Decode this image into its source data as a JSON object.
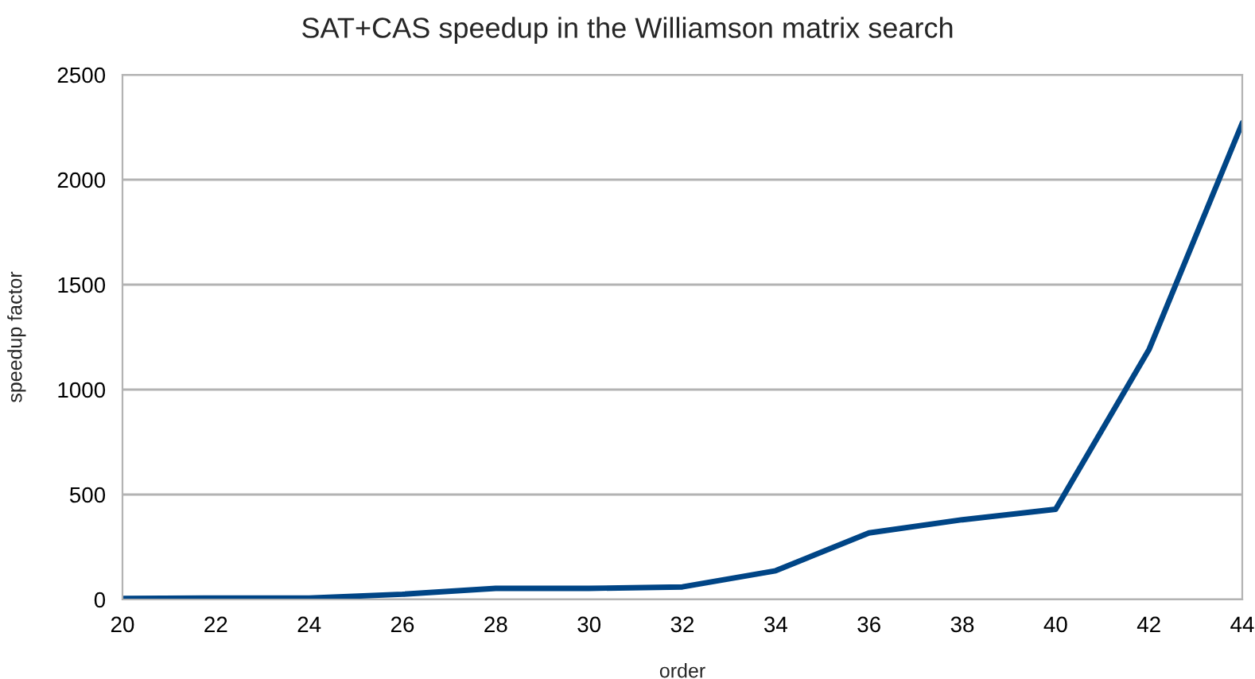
{
  "chart_data": {
    "type": "line",
    "title": "SAT+CAS speedup in the Williamson matrix search",
    "xlabel": "order",
    "ylabel": "speedup factor",
    "x": [
      20,
      22,
      24,
      26,
      28,
      30,
      32,
      34,
      36,
      38,
      40,
      42,
      44
    ],
    "series": [
      {
        "color": "#004586",
        "values": [
          5,
          7,
          7,
          25,
          53,
          53,
          60,
          137,
          317,
          380,
          430,
          1190,
          2270
        ]
      }
    ],
    "xlim": [
      20,
      44
    ],
    "xticks": [
      20,
      22,
      24,
      26,
      28,
      30,
      32,
      34,
      36,
      38,
      40,
      42,
      44
    ],
    "ylim": [
      0,
      2500
    ],
    "yticks": [
      0,
      500,
      1000,
      1500,
      2000,
      2500
    ],
    "grid": "y",
    "legend": false,
    "marker": "none",
    "line_style": "solid"
  }
}
